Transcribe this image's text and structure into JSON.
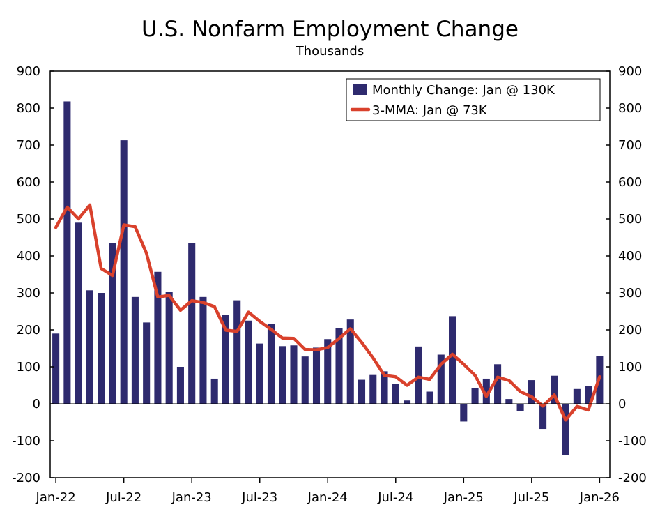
{
  "chart_data": {
    "type": "bar",
    "title": "U.S. Nonfarm Employment Change",
    "subtitle": "Thousands",
    "xlabel": "",
    "ylabel": "",
    "ylim": [
      -200,
      900
    ],
    "yticks": [
      -200,
      -100,
      0,
      100,
      200,
      300,
      400,
      500,
      600,
      700,
      800,
      900
    ],
    "x_tick_labels": [
      "Jan-22",
      "Jul-22",
      "Jan-23",
      "Jul-23",
      "Jan-24",
      "Jul-24",
      "Jan-25",
      "Jul-25",
      "Jan-26"
    ],
    "x_tick_every": 6,
    "legend_position": "top-right",
    "categories": [
      "Jan-22",
      "Feb-22",
      "Mar-22",
      "Apr-22",
      "May-22",
      "Jun-22",
      "Jul-22",
      "Aug-22",
      "Sep-22",
      "Oct-22",
      "Nov-22",
      "Dec-22",
      "Jan-23",
      "Feb-23",
      "Mar-23",
      "Apr-23",
      "May-23",
      "Jun-23",
      "Jul-23",
      "Aug-23",
      "Sep-23",
      "Oct-23",
      "Nov-23",
      "Dec-23",
      "Jan-24",
      "Feb-24",
      "Mar-24",
      "Apr-24",
      "May-24",
      "Jun-24",
      "Jul-24",
      "Aug-24",
      "Sep-24",
      "Oct-24",
      "Nov-24",
      "Dec-24",
      "Jan-25",
      "Feb-25",
      "Mar-25",
      "Apr-25",
      "May-25",
      "Jun-25",
      "Jul-25",
      "Aug-25",
      "Sep-25",
      "Oct-25",
      "Nov-25",
      "Dec-25",
      "Jan-26"
    ],
    "series": [
      {
        "name": "Monthly Change: Jan @ 130K",
        "type": "bar",
        "color": "#2e2a6e",
        "values": [
          190,
          818,
          490,
          307,
          300,
          434,
          713,
          289,
          220,
          357,
          303,
          100,
          434,
          289,
          68,
          240,
          280,
          225,
          163,
          216,
          156,
          158,
          128,
          152,
          175,
          205,
          228,
          65,
          78,
          88,
          53,
          9,
          155,
          33,
          133,
          237,
          -48,
          42,
          68,
          107,
          13,
          -20,
          64,
          -68,
          76,
          -138,
          40,
          48,
          130
        ]
      },
      {
        "name": "3-MMA: Jan @ 73K",
        "type": "line",
        "color": "#d9412c",
        "values": [
          477,
          532,
          500,
          538,
          366,
          347,
          484,
          479,
          407,
          289,
          293,
          253,
          279,
          274,
          263,
          199,
          196,
          248,
          223,
          201,
          178,
          177,
          147,
          146,
          152,
          177,
          203,
          166,
          124,
          77,
          73,
          50,
          72,
          66,
          107,
          134,
          107,
          77,
          20,
          72,
          63,
          33,
          19,
          -6,
          24,
          -44,
          -7,
          -17,
          73
        ]
      }
    ]
  }
}
